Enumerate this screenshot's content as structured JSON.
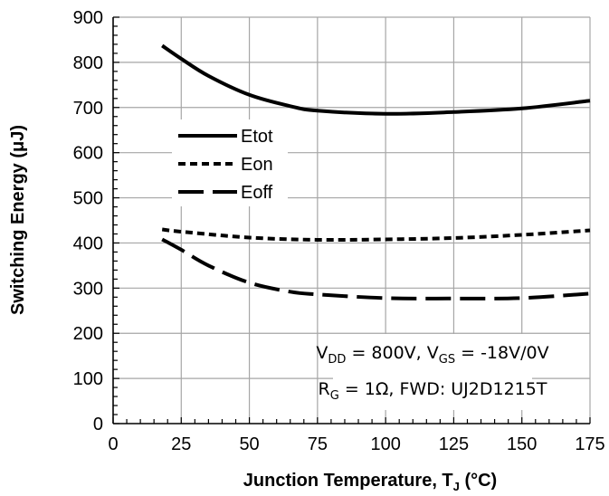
{
  "chart_data": {
    "type": "line",
    "xlabel": "Junction Temperature, T",
    "xlabel_sub": "J",
    "xlabel_suffix": " (°C)",
    "ylabel": "Switching Energy (μJ)",
    "xlim": [
      0,
      175
    ],
    "ylim": [
      0,
      900
    ],
    "xticks": [
      0,
      25,
      50,
      75,
      100,
      125,
      150,
      175
    ],
    "yticks": [
      0,
      100,
      200,
      300,
      400,
      500,
      600,
      700,
      800,
      900
    ],
    "grid": true,
    "legend_position": "upper-left",
    "series": [
      {
        "name": "Etot",
        "style": "solid",
        "x": [
          18,
          25,
          35,
          50,
          65,
          75,
          100,
          125,
          150,
          175
        ],
        "y": [
          837,
          808,
          770,
          728,
          703,
          693,
          686,
          690,
          698,
          715
        ]
      },
      {
        "name": "Eon",
        "style": "dotted",
        "x": [
          18,
          25,
          50,
          75,
          100,
          125,
          150,
          175
        ],
        "y": [
          430,
          425,
          412,
          407,
          408,
          411,
          418,
          428
        ]
      },
      {
        "name": "Eoff",
        "style": "dashed",
        "x": [
          18,
          25,
          35,
          50,
          65,
          75,
          100,
          125,
          150,
          175
        ],
        "y": [
          408,
          385,
          350,
          312,
          292,
          286,
          278,
          277,
          278,
          288
        ]
      }
    ],
    "annotations": [
      {
        "parts": [
          {
            "t": "V"
          },
          {
            "t": "DD",
            "sub": true
          },
          {
            "t": " = 800V, V"
          },
          {
            "t": "GS",
            "sub": true
          },
          {
            "t": " = -18V/0V"
          }
        ]
      },
      {
        "parts": [
          {
            "t": "R"
          },
          {
            "t": "G",
            "sub": true
          },
          {
            "t": " = 1Ω, FWD: UJ2D1215T"
          }
        ]
      }
    ]
  }
}
